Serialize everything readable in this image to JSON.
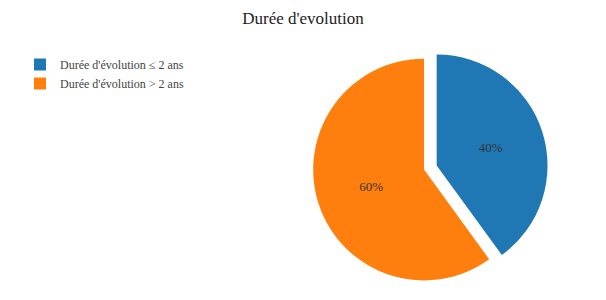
{
  "chart_data": {
    "type": "pie",
    "title": "Durée d'evolution",
    "categories": [
      "Durée d'évolution ≤ 2 ans",
      "Durée d'évolution > 2 ans"
    ],
    "values": [
      40,
      60
    ],
    "value_labels": [
      "40%",
      "60%"
    ],
    "data_labels": true,
    "legend": "upper left"
  }
}
